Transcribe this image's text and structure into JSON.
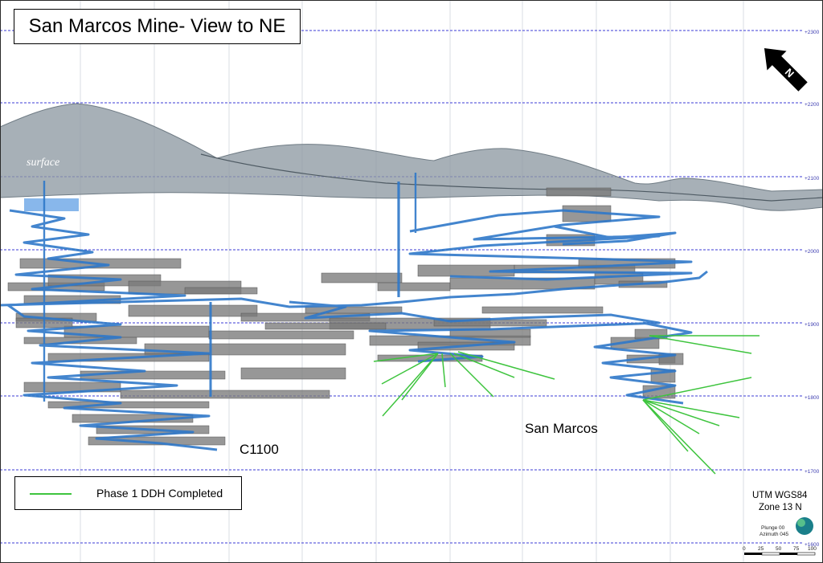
{
  "title": "San Marcos Mine- View to NE",
  "labels": {
    "surface": "surface",
    "san_marcos": "San Marcos",
    "c1100": "C1100"
  },
  "legend": {
    "label": "Phase 1 DDH Completed",
    "color": "#3ec43e"
  },
  "projection": {
    "line1": "UTM WGS84",
    "line2": "Zone 13 N",
    "plunge": "Plunge 00",
    "azimuth": "Azimuth 045"
  },
  "north_arrow": {
    "label": "N"
  },
  "elevations": [
    "+2300",
    "+2200",
    "+2100",
    "+2000",
    "+1900",
    "+1800",
    "+1700",
    "+1600"
  ],
  "scale_ticks": [
    "0",
    "25",
    "50",
    "75",
    "100"
  ],
  "colors": {
    "gridline": "#3b3bd6",
    "surface_fill": "#8e9aa3",
    "workings": "#7a7a7a",
    "drifts": "#2f78c9"
  }
}
